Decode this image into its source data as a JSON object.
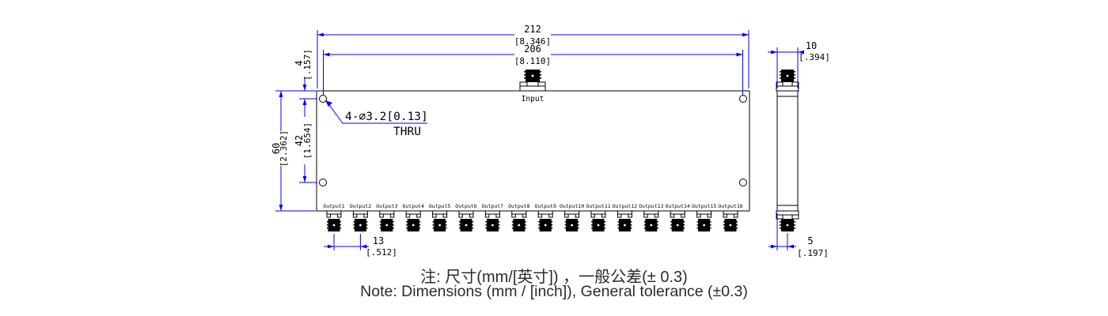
{
  "drawing": {
    "dimensions": {
      "width_overall": {
        "mm": "212",
        "inch": "[8.346]"
      },
      "width_hole_span": {
        "mm": "206",
        "inch": "[8.110]"
      },
      "hole_top_offset": {
        "mm": "4",
        "inch": "[.157]"
      },
      "hole_vertical_span": {
        "mm": "42",
        "inch": "[1.654]"
      },
      "height_overall": {
        "mm": "60",
        "inch": "[2.362]"
      },
      "output_spacing": {
        "mm": "13",
        "inch": "[.512]"
      },
      "side_width": {
        "mm": "10",
        "inch": "[.394]"
      },
      "side_connector_offset": {
        "mm": "5",
        "inch": "[.197]"
      }
    },
    "hole_callout": {
      "spec": "4-∅3.2[0.13]",
      "thru": "THRU"
    },
    "labels": {
      "input": "Input",
      "outputs": [
        "Output1",
        "Output2",
        "Output3",
        "Output4",
        "Output5",
        "Output6",
        "Output7",
        "Output8",
        "Output9",
        "Output10",
        "Output11",
        "Output12",
        "Output13",
        "Output14",
        "Output15",
        "Output16"
      ]
    },
    "notes": {
      "line1_zh": "注: 尺寸(mm/[英寸]) ，一般公差(± 0.3)",
      "line2_en": "Note: Dimensions (mm / [inch]), General tolerance (±0.3)"
    },
    "colors": {
      "dimension_line": "#0000ff",
      "drawing_line": "#000000",
      "text": "#000000",
      "background": "#ffffff"
    }
  }
}
